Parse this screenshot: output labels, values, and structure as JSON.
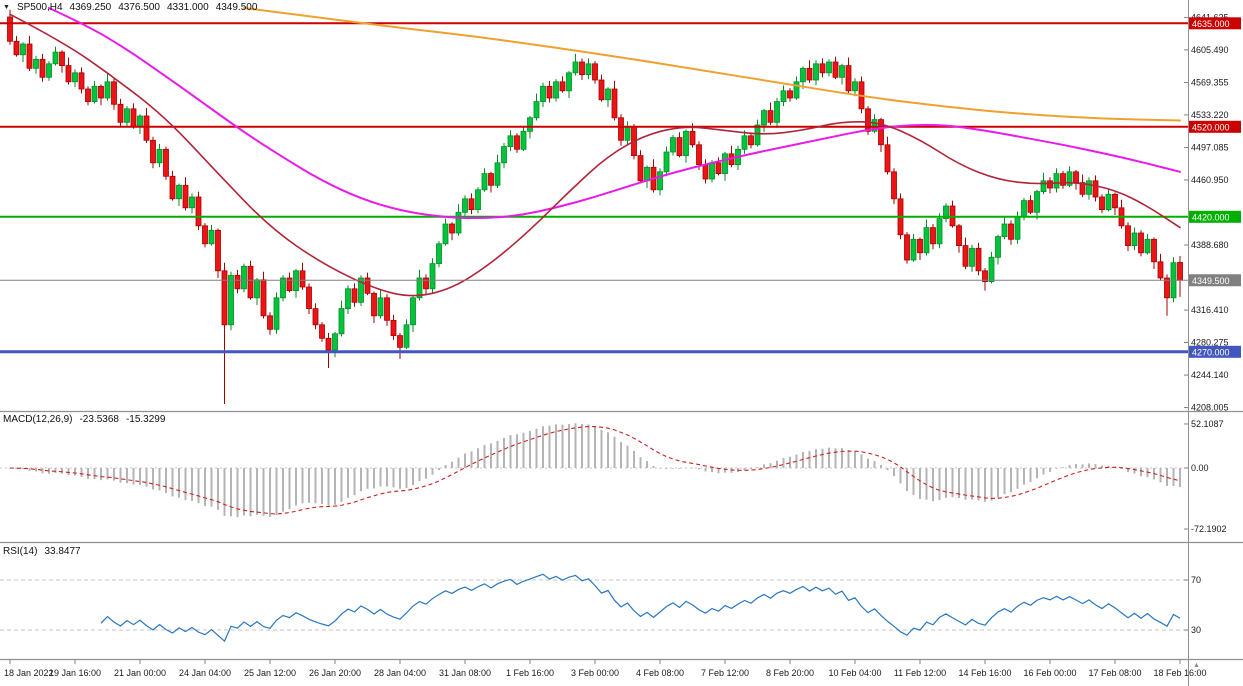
{
  "header": {
    "marker_icon": "▼",
    "symbol": "SP500,H4",
    "open": "4369.250",
    "high": "4376.500",
    "low": "4331.000",
    "close": "4349.500"
  },
  "panels": {
    "macd": {
      "label": "MACD(12,26,9)",
      "value_macd": "-23.5368",
      "value_signal": "-15.3299",
      "axis_ticks": [
        {
          "value": 52.1087,
          "label": "52.1087"
        },
        {
          "value": 0,
          "label": "0.00"
        },
        {
          "value": -72.1902,
          "label": "-72.1902"
        }
      ]
    },
    "rsi": {
      "label": "RSI(14)",
      "value": "33.8477",
      "levels": [
        70,
        30
      ],
      "axis_ticks": [
        {
          "value": 70,
          "label": "70"
        },
        {
          "value": 30,
          "label": "30"
        }
      ]
    }
  },
  "colors": {
    "background": "#FFFFFF",
    "bull": "#00C43C",
    "bull_border": "#008F26",
    "bear": "#EC1414",
    "bear_border": "#A80000",
    "ma_red": "#B22438",
    "ma_magenta": "#E81CE8",
    "ma_orange": "#F0A030",
    "hline_red": "#CC0000",
    "hline_green": "#00B000",
    "hline_blue": "#4156BE",
    "current_gray": "#808080",
    "macd_hist": "#B4B4B4",
    "macd_signal": "#CC2020",
    "rsi_line": "#2878C0",
    "level_dash": "#C4C4C4",
    "axis_text": "#1A1A1A",
    "separator": "#909090"
  },
  "chart_data": {
    "type": "candlestick",
    "title": "SP500,H4",
    "symbol": "SP500",
    "timeframe": "H4",
    "x_label_every": 10,
    "x_labels": [
      "18 Jan 2022",
      "19 Jan 16:00",
      "21 Jan 00:00",
      "24 Jan 04:00",
      "25 Jan 12:00",
      "26 Jan 20:00",
      "28 Jan 04:00",
      "31 Jan 08:00",
      "1 Feb 16:00",
      "3 Feb 00:00",
      "4 Feb 08:00",
      "7 Feb 12:00",
      "8 Feb 20:00",
      "10 Feb 04:00",
      "11 Feb 12:00",
      "14 Feb 16:00",
      "16 Feb 00:00",
      "17 Feb 08:00",
      "18 Feb 16:00"
    ],
    "y_ticks": [
      4641.625,
      4605.49,
      4569.355,
      4533.22,
      4497.085,
      4460.95,
      4388.68,
      4316.41,
      4280.275,
      4244.14,
      4208.005
    ],
    "hlines": [
      {
        "price": 4635.0,
        "label": "4635.000",
        "color": "#CC0000",
        "width": 2
      },
      {
        "price": 4520.0,
        "label": "4520.000",
        "color": "#CC0000",
        "width": 2
      },
      {
        "price": 4420.0,
        "label": "4420.000",
        "color": "#00B000",
        "width": 2
      },
      {
        "price": 4270.0,
        "label": "4270.000",
        "color": "#4156BE",
        "width": 3
      }
    ],
    "current_price": {
      "value": 4349.5,
      "label": "4349.500",
      "color": "#808080"
    },
    "candles": {
      "first_open": 4642,
      "closes": [
        4615,
        4600,
        4612,
        4585,
        4595,
        4575,
        4590,
        4603,
        4588,
        4570,
        4580,
        4562,
        4548,
        4565,
        4552,
        4570,
        4545,
        4525,
        4540,
        4520,
        4532,
        4505,
        4480,
        4495,
        4465,
        4440,
        4455,
        4430,
        4442,
        4410,
        4390,
        4405,
        4360,
        4300,
        4355,
        4340,
        4365,
        4330,
        4350,
        4310,
        4295,
        4330,
        4352,
        4338,
        4360,
        4342,
        4318,
        4300,
        4285,
        4272,
        4290,
        4318,
        4340,
        4325,
        4352,
        4335,
        4310,
        4330,
        4305,
        4288,
        4275,
        4300,
        4330,
        4352,
        4340,
        4368,
        4390,
        4412,
        4402,
        4425,
        4440,
        4428,
        4450,
        4468,
        4455,
        4480,
        4498,
        4510,
        4495,
        4515,
        4530,
        4548,
        4565,
        4552,
        4570,
        4560,
        4580,
        4592,
        4578,
        4590,
        4572,
        4550,
        4562,
        4530,
        4505,
        4520,
        4488,
        4460,
        4475,
        4450,
        4470,
        4492,
        4508,
        4488,
        4515,
        4500,
        4478,
        4462,
        4480,
        4468,
        4490,
        4478,
        4495,
        4510,
        4500,
        4522,
        4538,
        4525,
        4548,
        4560,
        4552,
        4570,
        4585,
        4572,
        4590,
        4580,
        4592,
        4575,
        4588,
        4560,
        4570,
        4540,
        4515,
        4528,
        4500,
        4470,
        4440,
        4400,
        4372,
        4395,
        4380,
        4408,
        4390,
        4418,
        4432,
        4410,
        4388,
        4365,
        4385,
        4360,
        4348,
        4375,
        4398,
        4412,
        4395,
        4420,
        4438,
        4425,
        4448,
        4460,
        4452,
        4468,
        4455,
        4470,
        4458,
        4445,
        4460,
        4442,
        4428,
        4445,
        4430,
        4410,
        4388,
        4402,
        4380,
        4395,
        4370,
        4352,
        4330,
        4369,
        4349.5
      ],
      "wick_up": [
        3,
        6,
        2,
        9,
        4,
        6
      ],
      "wick_down": [
        4,
        2,
        8,
        3,
        6,
        5
      ],
      "special": {
        "0": {
          "open": 4642,
          "high": 4650
        },
        "33": {
          "low": 4212
        },
        "49": {
          "low": 4252
        },
        "60": {
          "low": 4262
        },
        "150": {
          "low": 4338
        },
        "178": {
          "low": 4310
        },
        "180": {
          "open": 4369.25,
          "high": 4376.5,
          "low": 4331
        }
      }
    },
    "moving_averages": [
      {
        "name": "ma-orange-slow",
        "color": "#F0A030",
        "width": 2,
        "points": [
          [
            36,
            4652
          ],
          [
            48,
            4641
          ],
          [
            60,
            4630
          ],
          [
            72,
            4620
          ],
          [
            84,
            4608
          ],
          [
            96,
            4595
          ],
          [
            108,
            4581
          ],
          [
            120,
            4567
          ],
          [
            132,
            4553
          ],
          [
            144,
            4542
          ],
          [
            156,
            4534
          ],
          [
            168,
            4529
          ],
          [
            180,
            4527
          ]
        ]
      },
      {
        "name": "ma-magenta-mid",
        "color": "#E81CE8",
        "width": 2,
        "points": [
          [
            6,
            4652
          ],
          [
            12,
            4632
          ],
          [
            18,
            4606
          ],
          [
            24,
            4576
          ],
          [
            30,
            4545
          ],
          [
            36,
            4514
          ],
          [
            42,
            4486
          ],
          [
            48,
            4460
          ],
          [
            54,
            4440
          ],
          [
            60,
            4427
          ],
          [
            66,
            4420
          ],
          [
            72,
            4418
          ],
          [
            78,
            4421
          ],
          [
            84,
            4430
          ],
          [
            90,
            4442
          ],
          [
            96,
            4456
          ],
          [
            102,
            4469
          ],
          [
            108,
            4480
          ],
          [
            114,
            4490
          ],
          [
            120,
            4499
          ],
          [
            126,
            4508
          ],
          [
            132,
            4517
          ],
          [
            138,
            4522
          ],
          [
            144,
            4522
          ],
          [
            150,
            4516
          ],
          [
            156,
            4508
          ],
          [
            162,
            4500
          ],
          [
            168,
            4491
          ],
          [
            174,
            4481
          ],
          [
            180,
            4470
          ]
        ]
      },
      {
        "name": "ma-red-fast",
        "color": "#B22438",
        "width": 1.6,
        "points": [
          [
            0,
            4645
          ],
          [
            8,
            4615
          ],
          [
            16,
            4575
          ],
          [
            24,
            4530
          ],
          [
            32,
            4468
          ],
          [
            40,
            4408
          ],
          [
            48,
            4368
          ],
          [
            56,
            4340
          ],
          [
            62,
            4330
          ],
          [
            68,
            4340
          ],
          [
            74,
            4368
          ],
          [
            80,
            4405
          ],
          [
            86,
            4448
          ],
          [
            92,
            4488
          ],
          [
            98,
            4512
          ],
          [
            104,
            4521
          ],
          [
            110,
            4516
          ],
          [
            116,
            4511
          ],
          [
            122,
            4516
          ],
          [
            128,
            4526
          ],
          [
            134,
            4525
          ],
          [
            140,
            4506
          ],
          [
            146,
            4478
          ],
          [
            152,
            4461
          ],
          [
            158,
            4456
          ],
          [
            164,
            4459
          ],
          [
            170,
            4450
          ],
          [
            175,
            4432
          ],
          [
            180,
            4408
          ]
        ]
      }
    ],
    "macd": {
      "fast": 12,
      "slow": 26,
      "signal": 9
    },
    "rsi": {
      "period": 14
    }
  }
}
